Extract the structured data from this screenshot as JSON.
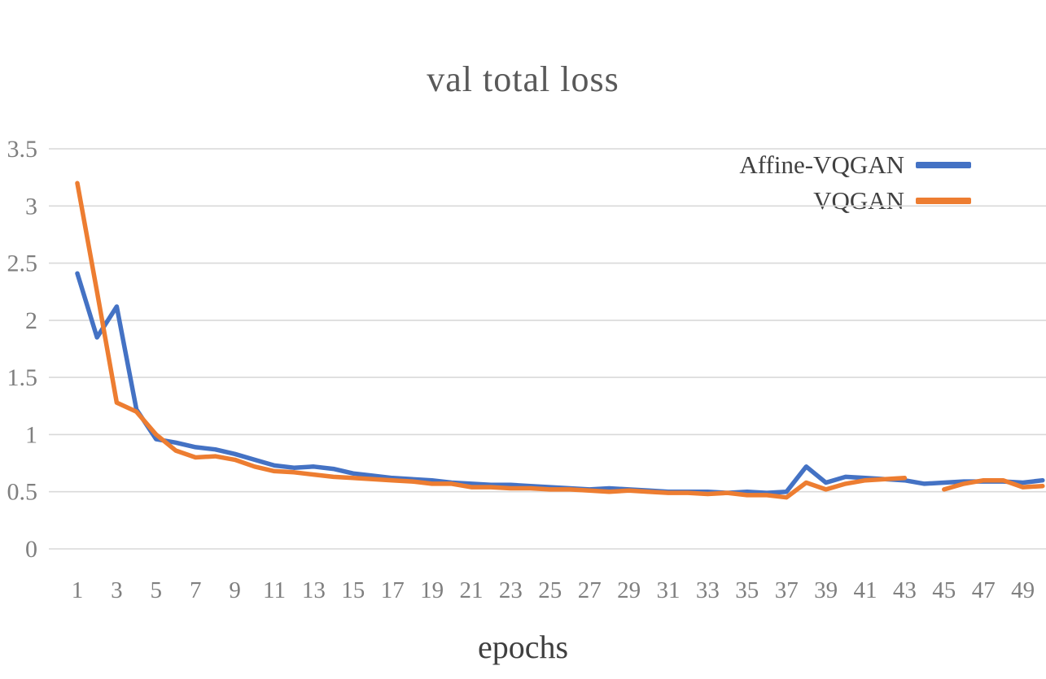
{
  "chart_data": {
    "type": "line",
    "title": "val total loss",
    "xlabel": "epochs",
    "ylabel": "",
    "x": [
      1,
      2,
      3,
      4,
      5,
      6,
      7,
      8,
      9,
      10,
      11,
      12,
      13,
      14,
      15,
      16,
      17,
      18,
      19,
      20,
      21,
      22,
      23,
      24,
      25,
      26,
      27,
      28,
      29,
      30,
      31,
      32,
      33,
      34,
      35,
      36,
      37,
      38,
      39,
      40,
      41,
      42,
      43,
      44,
      45,
      46,
      47,
      48,
      49,
      50
    ],
    "x_tick_labels": [
      "1",
      "3",
      "5",
      "7",
      "9",
      "11",
      "13",
      "15",
      "17",
      "19",
      "21",
      "23",
      "25",
      "27",
      "29",
      "31",
      "33",
      "35",
      "37",
      "39",
      "41",
      "43",
      "45",
      "47",
      "49"
    ],
    "x_ticks": [
      1,
      3,
      5,
      7,
      9,
      11,
      13,
      15,
      17,
      19,
      21,
      23,
      25,
      27,
      29,
      31,
      33,
      35,
      37,
      39,
      41,
      43,
      45,
      47,
      49
    ],
    "y_ticks": [
      0,
      0.5,
      1,
      1.5,
      2,
      2.5,
      3,
      3.5
    ],
    "y_tick_labels": [
      "0",
      "0.5",
      "1",
      "1.5",
      "2",
      "2.5",
      "3",
      "3.5"
    ],
    "ylim": [
      0,
      3.5
    ],
    "grid": true,
    "legend_position": "top-right",
    "series": [
      {
        "name": "Affine-VQGAN",
        "color": "#4472C4",
        "values": [
          2.41,
          1.85,
          2.12,
          1.22,
          0.96,
          0.93,
          0.89,
          0.87,
          0.83,
          0.78,
          0.73,
          0.71,
          0.72,
          0.7,
          0.66,
          0.64,
          0.62,
          0.61,
          0.6,
          0.58,
          0.57,
          0.56,
          0.56,
          0.55,
          0.54,
          0.53,
          0.52,
          0.53,
          0.52,
          0.51,
          0.5,
          0.5,
          0.5,
          0.49,
          0.5,
          0.49,
          0.5,
          0.72,
          0.58,
          0.63,
          0.62,
          0.61,
          0.6,
          0.57,
          0.58,
          0.59,
          0.59,
          0.59,
          0.58,
          0.6
        ]
      },
      {
        "name": "VQGAN",
        "color": "#ED7D31",
        "values": [
          3.2,
          2.25,
          1.28,
          1.2,
          1.0,
          0.86,
          0.8,
          0.81,
          0.78,
          0.72,
          0.68,
          0.67,
          0.65,
          0.63,
          0.62,
          0.61,
          0.6,
          0.59,
          0.57,
          0.57,
          0.54,
          0.54,
          0.53,
          0.53,
          0.52,
          0.52,
          0.51,
          0.5,
          0.51,
          0.5,
          0.49,
          0.49,
          0.48,
          0.49,
          0.47,
          0.47,
          0.45,
          0.58,
          0.52,
          0.57,
          0.6,
          0.61,
          0.62,
          null,
          0.52,
          0.57,
          0.6,
          0.6,
          0.54,
          0.55
        ]
      }
    ],
    "colors": {
      "grid": "#d9d9d9",
      "axis_text": "#7f7f7f",
      "title_text": "#595959"
    }
  }
}
